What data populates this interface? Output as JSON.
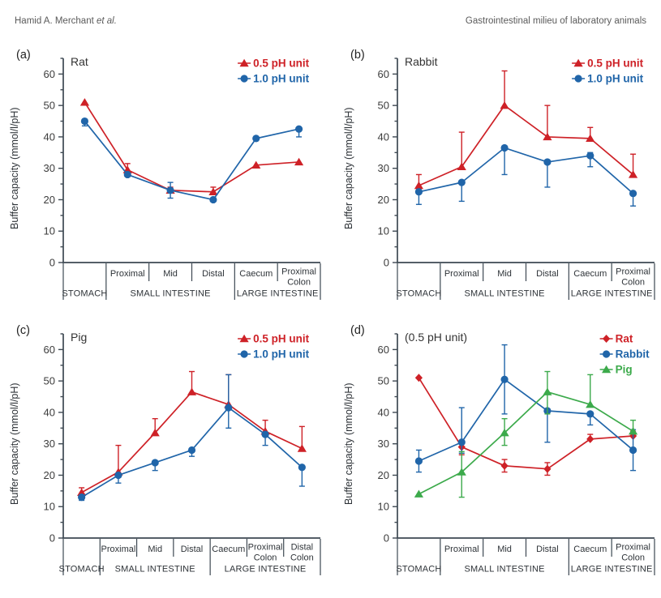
{
  "header": {
    "author": "Hamid A. Merchant",
    "author_suffix": "et al.",
    "title": "Gastrointestinal milieu of laboratory animals"
  },
  "ui_colors": {
    "red": "#ce2127",
    "blue": "#2065a9",
    "green": "#3caa4b",
    "axis": "#3d4852",
    "tick_text": "#3c3c3c",
    "label_text": "#2e3338",
    "header_text": "#5a5a5a"
  },
  "chart_data": [
    {
      "type": "line",
      "panel_letter": "(a)",
      "title": "Rat",
      "ylabel": "Buffer capacity (mmol/l/pH)",
      "ylim": [
        0,
        65
      ],
      "yticks": [
        0,
        10,
        20,
        30,
        40,
        50,
        60
      ],
      "minor_tick_step": 5,
      "grid": false,
      "legend_position": "top-right",
      "categories": [
        "STOMACH",
        "Proximal",
        "Mid",
        "Distal",
        "Caecum",
        "Proximal Colon"
      ],
      "cat_labels": [
        "",
        "Proximal",
        "Mid",
        "Distal",
        "Caecum",
        "Proximal|Colon"
      ],
      "groups": [
        {
          "label": "STOMACH",
          "span": 1
        },
        {
          "label": "SMALL INTESTINE",
          "span": 3
        },
        {
          "label": "LARGE INTESTINE",
          "span": 2
        }
      ],
      "series": [
        {
          "name": "0.5 pH unit",
          "color_key": "red",
          "marker": "triangle",
          "values": [
            51,
            29.5,
            23,
            22.5,
            31,
            32
          ],
          "err_up": [
            0,
            2,
            1,
            1.5,
            0,
            0
          ],
          "err_down": [
            0,
            0,
            0,
            0,
            0,
            0
          ]
        },
        {
          "name": "1.0 pH unit",
          "color_key": "blue",
          "marker": "circle",
          "values": [
            45,
            28,
            23,
            20,
            39.5,
            42.5
          ],
          "err_up": [
            0,
            0,
            2.5,
            0,
            0,
            0
          ],
          "err_down": [
            1.5,
            0,
            2.5,
            0,
            0,
            2.5
          ]
        }
      ]
    },
    {
      "type": "line",
      "panel_letter": "(b)",
      "title": "Rabbit",
      "ylabel": "Buffer capacity (mmol/l/pH)",
      "ylim": [
        0,
        65
      ],
      "yticks": [
        0,
        10,
        20,
        30,
        40,
        50,
        60
      ],
      "minor_tick_step": 5,
      "grid": false,
      "legend_position": "top-right",
      "categories": [
        "STOMACH",
        "Proximal",
        "Mid",
        "Distal",
        "Caecum",
        "Proximal Colon"
      ],
      "cat_labels": [
        "",
        "Proximal",
        "Mid",
        "Distal",
        "Caecum",
        "Proximal|Colon"
      ],
      "groups": [
        {
          "label": "STOMACH",
          "span": 1
        },
        {
          "label": "SMALL INTESTINE",
          "span": 3
        },
        {
          "label": "LARGE INTESTINE",
          "span": 2
        }
      ],
      "series": [
        {
          "name": "0.5 pH unit",
          "color_key": "red",
          "marker": "triangle",
          "values": [
            24.5,
            30.5,
            50,
            40,
            39.5,
            28
          ],
          "err_up": [
            3.5,
            11,
            11,
            10,
            3.5,
            6.5
          ],
          "err_down": [
            1,
            0,
            0,
            0,
            0,
            0
          ]
        },
        {
          "name": "1.0 pH unit",
          "color_key": "blue",
          "marker": "circle",
          "values": [
            22.5,
            25.5,
            36.5,
            32,
            34,
            22
          ],
          "err_up": [
            0,
            0,
            0,
            0,
            1,
            0
          ],
          "err_down": [
            4,
            6,
            8.5,
            8,
            3.5,
            4
          ]
        }
      ]
    },
    {
      "type": "line",
      "panel_letter": "(c)",
      "title": "Pig",
      "ylabel": "Buffer capacity (mmol/l/pH)",
      "ylim": [
        0,
        65
      ],
      "yticks": [
        0,
        10,
        20,
        30,
        40,
        50,
        60
      ],
      "minor_tick_step": 5,
      "grid": false,
      "legend_position": "top-right",
      "categories": [
        "STOMACH",
        "Proximal",
        "Mid",
        "Distal",
        "Caecum",
        "Proximal Colon",
        "Distal Colon"
      ],
      "cat_labels": [
        "",
        "Proximal",
        "Mid",
        "Distal",
        "Caecum",
        "Proximal|Colon",
        "Distal|Colon"
      ],
      "groups": [
        {
          "label": "STOMACH",
          "span": 1
        },
        {
          "label": "SMALL INTESTINE",
          "span": 3
        },
        {
          "label": "LARGE INTESTINE",
          "span": 3
        }
      ],
      "series": [
        {
          "name": "0.5 pH unit",
          "color_key": "red",
          "marker": "triangle",
          "values": [
            14.5,
            21,
            33.5,
            46.5,
            42.5,
            34,
            28.5
          ],
          "err_up": [
            1.5,
            8.5,
            4.5,
            6.5,
            9.5,
            3.5,
            7
          ],
          "err_down": [
            0,
            0,
            0,
            0,
            0,
            0,
            0
          ]
        },
        {
          "name": "1.0 pH unit",
          "color_key": "blue",
          "marker": "circle",
          "values": [
            13,
            20,
            24,
            28,
            41.5,
            33,
            22.5
          ],
          "err_up": [
            0,
            0,
            0,
            0,
            10.5,
            0,
            0
          ],
          "err_down": [
            1,
            2.5,
            2.5,
            2,
            6.5,
            3.5,
            6
          ]
        }
      ]
    },
    {
      "type": "line",
      "panel_letter": "(d)",
      "title": "(0.5 pH unit)",
      "ylabel": "Buffer capacity (mmol/l/pH)",
      "ylim": [
        0,
        65
      ],
      "yticks": [
        0,
        10,
        20,
        30,
        40,
        50,
        60
      ],
      "minor_tick_step": 5,
      "grid": false,
      "legend_position": "top-right",
      "categories": [
        "STOMACH",
        "Proximal",
        "Mid",
        "Distal",
        "Caecum",
        "Proximal Colon"
      ],
      "cat_labels": [
        "",
        "Proximal",
        "Mid",
        "Distal",
        "Caecum",
        "Proximal|Colon"
      ],
      "groups": [
        {
          "label": "STOMACH",
          "span": 1
        },
        {
          "label": "SMALL INTESTINE",
          "span": 3
        },
        {
          "label": "LARGE INTESTINE",
          "span": 2
        }
      ],
      "series": [
        {
          "name": "Rat",
          "color_key": "red",
          "marker": "diamond",
          "values": [
            51,
            29,
            23,
            22,
            31.5,
            32.5
          ],
          "err_up": [
            0,
            0,
            2,
            2,
            1.5,
            1.5
          ],
          "err_down": [
            0,
            2.5,
            2,
            2,
            0,
            0
          ]
        },
        {
          "name": "Rabbit",
          "color_key": "blue",
          "marker": "circle",
          "values": [
            24.5,
            30.5,
            50.5,
            40.5,
            39.5,
            28
          ],
          "err_up": [
            3.5,
            11,
            11,
            0,
            0,
            6.5
          ],
          "err_down": [
            3.5,
            3.5,
            11,
            10,
            3.5,
            6.5
          ]
        },
        {
          "name": "Pig",
          "color_key": "green",
          "marker": "triangle",
          "values": [
            14,
            21,
            33.5,
            46.5,
            42.5,
            34
          ],
          "err_up": [
            0,
            6.5,
            4.5,
            6.5,
            9.5,
            3.5
          ],
          "err_down": [
            0,
            8,
            4,
            7,
            0,
            0
          ]
        }
      ]
    }
  ]
}
